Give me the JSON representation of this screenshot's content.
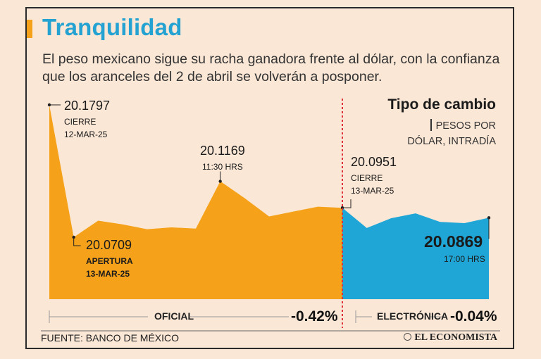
{
  "title": "Tranquilidad",
  "subtitle": "El peso mexicano sigue su racha ganadora frente al dólar, con la confianza que los aranceles del 2 de abril se volverán a posponer.",
  "source": "FUENTE: BANCO DE MÉXICO",
  "publisher": "EL ECONOMISTA",
  "colors": {
    "oficial": "#f5a21a",
    "electronica": "#1fa6d6",
    "divider": "#e0303a",
    "title": "#24a3d2"
  },
  "chart_data": {
    "type": "area",
    "title": "Tipo de cambio",
    "units_line1": "PESOS POR",
    "units_line2": "DÓLAR, INTRADÍA",
    "series": [
      {
        "name": "OFICIAL",
        "change": "-0.42%",
        "values": [
          20.1797,
          20.0709,
          20.0845,
          20.0815,
          20.0775,
          20.079,
          20.078,
          20.1169,
          20.103,
          20.088,
          20.092,
          20.096,
          20.0951
        ]
      },
      {
        "name": "ELECTRÓNICA",
        "change": "-0.04%",
        "values": [
          20.0951,
          20.0785,
          20.0865,
          20.0905,
          20.0835,
          20.0825,
          20.0869
        ]
      }
    ],
    "annotations": [
      {
        "value": "20.1797",
        "label": "CIERRE",
        "date": "12-MAR-25"
      },
      {
        "value": "20.0709",
        "label": "APERTURA",
        "date": "13-MAR-25"
      },
      {
        "value": "20.1169",
        "time": "11:30 HRS"
      },
      {
        "value": "20.0951",
        "label": "CIERRE",
        "date": "13-MAR-25"
      },
      {
        "value": "20.0869",
        "time": "17:00 HRS"
      }
    ],
    "ylim": [
      19.98,
      20.19
    ]
  }
}
